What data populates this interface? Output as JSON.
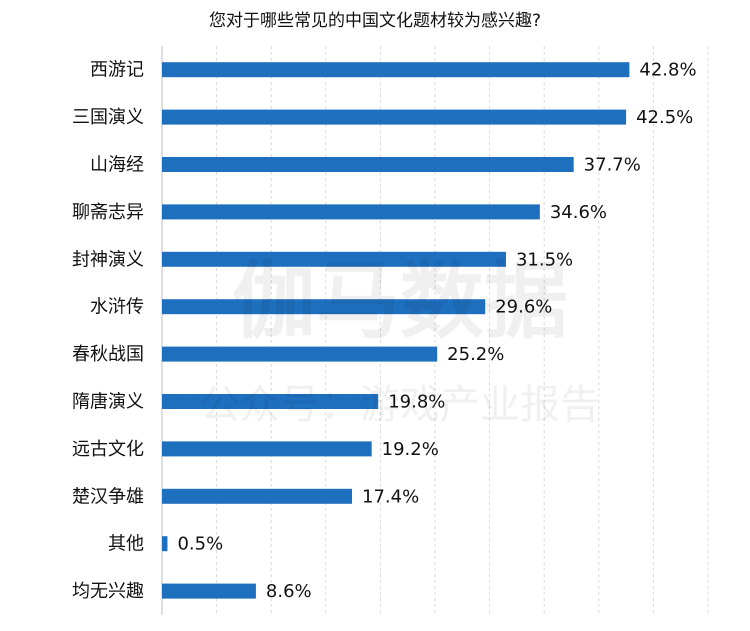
{
  "chart_data": {
    "type": "bar",
    "orientation": "horizontal",
    "title": "您对于哪些常见的中国文化题材较为感兴趣?",
    "categories": [
      "西游记",
      "三国演义",
      "山海经",
      "聊斋志异",
      "封神演义",
      "水浒传",
      "春秋战国",
      "隋唐演义",
      "远古文化",
      "楚汉争雄",
      "其他",
      "均无兴趣"
    ],
    "values": [
      42.8,
      42.5,
      37.7,
      34.6,
      31.5,
      29.6,
      25.2,
      19.8,
      19.2,
      17.4,
      0.5,
      8.6
    ],
    "value_labels": [
      "42.8%",
      "42.5%",
      "37.7%",
      "34.6%",
      "31.5%",
      "29.6%",
      "25.2%",
      "19.8%",
      "19.2%",
      "17.4%",
      "0.5%",
      "8.6%"
    ],
    "xlim": [
      0,
      50
    ],
    "grid": true,
    "bar_color": "#1f6fbf"
  },
  "watermark": {
    "line1": "伽马数据",
    "line2": "公众号：游戏产业报告"
  }
}
